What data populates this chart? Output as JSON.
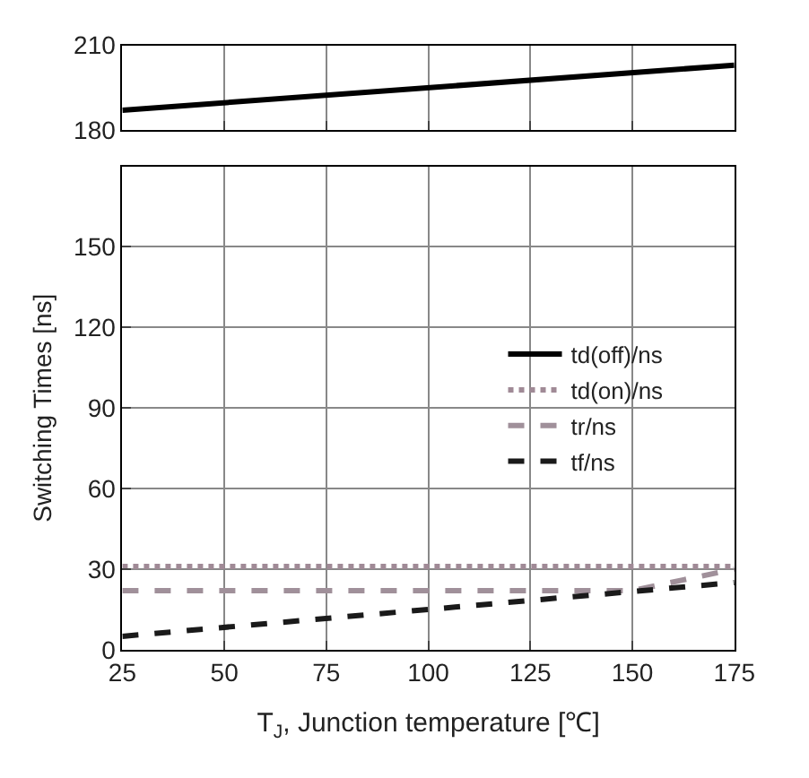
{
  "chart_data": [
    {
      "type": "line",
      "xlim": [
        25,
        175
      ],
      "xticks": [
        25,
        50,
        75,
        100,
        125,
        150,
        175
      ],
      "ylim": [
        180,
        210
      ],
      "yticks": [
        180,
        210
      ],
      "grid": true,
      "tick_labels": "y",
      "series": [
        {
          "name": "td(off)/ns",
          "color": "#000000",
          "line_style": "solid",
          "x": [
            25,
            175
          ],
          "values": [
            187,
            203
          ]
        }
      ]
    },
    {
      "type": "line",
      "xlabel": "T$_{J}$, Junction temperature [℃]",
      "ylabel": "Switching Times [ns]",
      "xlim": [
        25,
        175
      ],
      "xticks": [
        25,
        50,
        75,
        100,
        125,
        150,
        175
      ],
      "ylim": [
        0,
        180
      ],
      "yticks": [
        0,
        30,
        60,
        90,
        120,
        150
      ],
      "grid": true,
      "legend": "right",
      "series": [
        {
          "name": "td(on)/ns",
          "color": "#a08a96",
          "line_style": "dotted",
          "x": [
            25,
            175
          ],
          "values": [
            31,
            31
          ]
        },
        {
          "name": "tr/ns",
          "color": "#a0909a",
          "line_style": "dashed",
          "x": [
            25,
            150,
            175
          ],
          "values": [
            22,
            22,
            30
          ]
        },
        {
          "name": "tf/ns",
          "color": "#1a1a1a",
          "line_style": "dashed",
          "x": [
            25,
            175
          ],
          "values": [
            5,
            25
          ]
        }
      ]
    }
  ]
}
